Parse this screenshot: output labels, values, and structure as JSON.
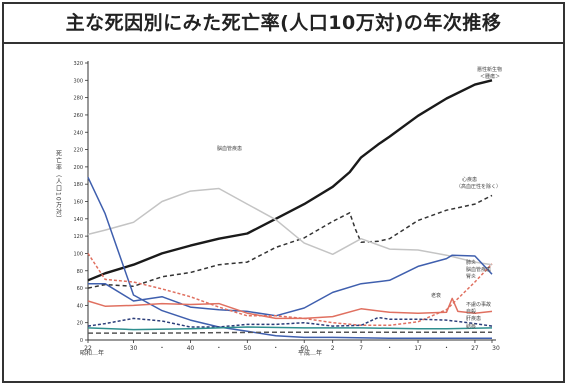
{
  "title": "主な死因別にみた死亡率(人口10万対)の年次推移",
  "chart_data": {
    "type": "line",
    "ylabel": "死亡率（人口10万対）",
    "ylim": [
      0,
      320
    ],
    "yticks": [
      0,
      20,
      40,
      60,
      80,
      100,
      120,
      140,
      160,
      180,
      200,
      220,
      240,
      260,
      280,
      300,
      320
    ],
    "x_ticks": [
      "22",
      "30",
      "40",
      "50",
      "60",
      "2",
      "7",
      "17",
      "27",
      "30"
    ],
    "era_labels": [
      "昭和…年",
      "平成…年"
    ],
    "grid": false,
    "series": [
      {
        "name": "悪性新生物 ＜腫瘍＞",
        "color": "#1a1a1a",
        "values": [
          [
            1947,
            69
          ],
          [
            1950,
            77
          ],
          [
            1955,
            87
          ],
          [
            1960,
            100
          ],
          [
            1965,
            109
          ],
          [
            1970,
            117
          ],
          [
            1975,
            123
          ],
          [
            1980,
            140
          ],
          [
            1985,
            157
          ],
          [
            1990,
            177
          ],
          [
            1993,
            194
          ],
          [
            1995,
            211
          ],
          [
            1998,
            226
          ],
          [
            2000,
            235
          ],
          [
            2005,
            259
          ],
          [
            2010,
            279
          ],
          [
            2015,
            295
          ],
          [
            2018,
            300
          ]
        ]
      },
      {
        "name": "心疾患 （高血圧性を除く）",
        "color": "#333333",
        "dash": "4,3",
        "values": [
          [
            1947,
            60
          ],
          [
            1950,
            64
          ],
          [
            1955,
            62
          ],
          [
            1960,
            73
          ],
          [
            1965,
            78
          ],
          [
            1970,
            87
          ],
          [
            1975,
            90
          ],
          [
            1980,
            107
          ],
          [
            1985,
            118
          ],
          [
            1990,
            137
          ],
          [
            1993,
            147
          ],
          [
            1994,
            128
          ],
          [
            1995,
            113
          ],
          [
            1998,
            114
          ],
          [
            2000,
            117
          ],
          [
            2005,
            138
          ],
          [
            2010,
            150
          ],
          [
            2015,
            157
          ],
          [
            2018,
            167
          ]
        ]
      },
      {
        "name": "脳血管疾患",
        "color": "#c4c4c4",
        "values": [
          [
            1947,
            122
          ],
          [
            1950,
            127
          ],
          [
            1955,
            136
          ],
          [
            1960,
            160
          ],
          [
            1965,
            172
          ],
          [
            1970,
            175
          ],
          [
            1975,
            157
          ],
          [
            1980,
            139
          ],
          [
            1985,
            112
          ],
          [
            1990,
            99
          ],
          [
            1995,
            117
          ],
          [
            2000,
            105
          ],
          [
            2005,
            104
          ],
          [
            2010,
            98
          ],
          [
            2015,
            90
          ],
          [
            2018,
            87
          ]
        ]
      },
      {
        "name": "肺炎",
        "color": "#3f5fae",
        "values": [
          [
            1947,
            65
          ],
          [
            1950,
            65
          ],
          [
            1955,
            45
          ],
          [
            1960,
            50
          ],
          [
            1965,
            38
          ],
          [
            1970,
            35
          ],
          [
            1975,
            33
          ],
          [
            1980,
            28
          ],
          [
            1985,
            37
          ],
          [
            1990,
            55
          ],
          [
            1995,
            65
          ],
          [
            2000,
            69
          ],
          [
            2005,
            85
          ],
          [
            2010,
            94
          ],
          [
            2011,
            98
          ],
          [
            2015,
            97
          ],
          [
            2018,
            76
          ]
        ]
      },
      {
        "name": "結核",
        "color": "#3f5fae",
        "values": [
          [
            1947,
            188
          ],
          [
            1950,
            146
          ],
          [
            1955,
            52
          ],
          [
            1960,
            34
          ],
          [
            1965,
            23
          ],
          [
            1970,
            15
          ],
          [
            1975,
            10
          ],
          [
            1980,
            5
          ],
          [
            1985,
            3
          ],
          [
            1990,
            3
          ],
          [
            2000,
            2
          ],
          [
            2018,
            2
          ]
        ]
      },
      {
        "name": "不慮の事故",
        "color": "#e07060",
        "values": [
          [
            1947,
            45
          ],
          [
            1950,
            39
          ],
          [
            1955,
            40
          ],
          [
            1960,
            42
          ],
          [
            1965,
            41
          ],
          [
            1970,
            42
          ],
          [
            1975,
            31
          ],
          [
            1980,
            25
          ],
          [
            1985,
            25
          ],
          [
            1990,
            27
          ],
          [
            1995,
            36
          ],
          [
            2000,
            32
          ],
          [
            2005,
            31
          ],
          [
            2010,
            32
          ],
          [
            2011,
            48
          ],
          [
            2012,
            33
          ],
          [
            2015,
            31
          ],
          [
            2018,
            33
          ]
        ]
      },
      {
        "name": "老衰",
        "color": "#e07060",
        "dash": "3,2",
        "values": [
          [
            1947,
            100
          ],
          [
            1950,
            70
          ],
          [
            1955,
            67
          ],
          [
            1960,
            59
          ],
          [
            1965,
            50
          ],
          [
            1970,
            38
          ],
          [
            1975,
            28
          ],
          [
            1980,
            28
          ],
          [
            1985,
            25
          ],
          [
            1990,
            20
          ],
          [
            1995,
            17
          ],
          [
            2000,
            17
          ],
          [
            2005,
            21
          ],
          [
            2010,
            35
          ],
          [
            2015,
            67
          ],
          [
            2018,
            88
          ]
        ]
      },
      {
        "name": "自殺",
        "color": "#2c3e7a",
        "dash": "3,2",
        "values": [
          [
            1947,
            16
          ],
          [
            1950,
            19
          ],
          [
            1955,
            25
          ],
          [
            1960,
            22
          ],
          [
            1965,
            15
          ],
          [
            1970,
            15
          ],
          [
            1975,
            18
          ],
          [
            1980,
            18
          ],
          [
            1985,
            20
          ],
          [
            1990,
            16
          ],
          [
            1995,
            17
          ],
          [
            1998,
            26
          ],
          [
            2000,
            24
          ],
          [
            2005,
            24
          ],
          [
            2010,
            23
          ],
          [
            2015,
            19
          ],
          [
            2018,
            16
          ]
        ]
      },
      {
        "name": "肝疾患",
        "color": "#2f8f8f",
        "values": [
          [
            1947,
            14
          ],
          [
            1955,
            12
          ],
          [
            1965,
            13
          ],
          [
            1975,
            15
          ],
          [
            1985,
            14
          ],
          [
            1995,
            14
          ],
          [
            2005,
            13
          ],
          [
            2010,
            13
          ],
          [
            2018,
            14
          ]
        ]
      },
      {
        "name": "結核",
        "color": "#555555",
        "dash": "5,3",
        "values": [
          [
            1947,
            8
          ],
          [
            1960,
            8
          ],
          [
            1980,
            9
          ],
          [
            2000,
            9
          ],
          [
            2018,
            9
          ]
        ]
      }
    ],
    "annotations": [
      {
        "text": "悪性新生物",
        "series": 0
      },
      {
        "text": "＜腫瘍＞",
        "series": 0
      },
      {
        "text": "心疾患",
        "series": 1
      },
      {
        "text": "（高血圧性を除く）",
        "series": 1
      },
      {
        "text": "脳血管疾患",
        "series": 2
      },
      {
        "text": "老衰",
        "series": 6
      },
      {
        "text": "肺炎",
        "series": 3
      },
      {
        "text": "脳血管疾患",
        "series": 2
      },
      {
        "text": "腎炎",
        "series": -1
      },
      {
        "text": "不慮の事故",
        "series": 5
      },
      {
        "text": "自殺",
        "series": 7
      },
      {
        "text": "肝疾患",
        "series": 8
      },
      {
        "text": "結核",
        "series": 9
      }
    ]
  }
}
